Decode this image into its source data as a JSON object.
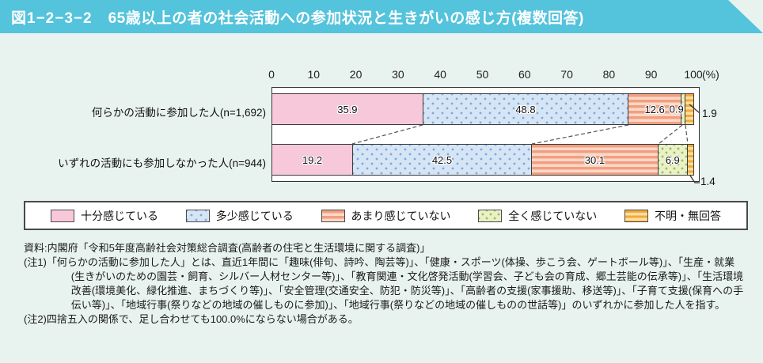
{
  "header": {
    "fig_no": "図1−2−3−2",
    "title": "65歳以上の者の社会活動への参加状況と生きがいの感じ方(複数回答)"
  },
  "chart_data": {
    "type": "bar",
    "stacked": true,
    "orientation": "horizontal",
    "unit": "(%)",
    "axis": {
      "ticks": [
        0,
        10,
        20,
        30,
        40,
        50,
        60,
        70,
        80,
        90,
        100
      ],
      "max": 100
    },
    "legend": [
      "十分感じている",
      "多少感じている",
      "あまり感じていない",
      "全く感じていない",
      "不明・無回答"
    ],
    "colors": {
      "pink": "#f7c8da",
      "blue_base": "#d6e5f5",
      "blue_dot": "#7ea9d8",
      "salmon_stripe": "#f19f82",
      "salmon_base": "#fcd8c6",
      "green_base": "#eaf0c8",
      "green_dot": "#9cbd51",
      "orange_stripe": "#f3a93c",
      "orange_base": "#fbdf9e",
      "banner": "#54c3dc",
      "page_bg": "#e8f3f0"
    },
    "rows": [
      {
        "label": "何らかの活動に参加した人(n=1,692)",
        "n": 1692,
        "values": [
          35.9,
          48.8,
          12.6,
          0.9,
          1.9
        ]
      },
      {
        "label": "いずれの活動にも参加しなかった人(n=944)",
        "n": 944,
        "values": [
          19.2,
          42.5,
          30.1,
          6.9,
          1.4
        ]
      }
    ],
    "callouts": {
      "row1_overlay": "0.9",
      "row1_outside": "1.9",
      "row2_outside": "1.4"
    }
  },
  "notes": {
    "source": "資料:内閣府「令和5年度高齢社会対策総合調査(高齢者の住宅と生活環境に関する調査)」",
    "note1": "(注1)「何らかの活動に参加した人」とは、直近1年間に「趣味(俳句、詩吟、陶芸等)」、「健康・スポーツ(体操、歩こう会、ゲートボール等)」、「生産・就業(生きがいのための園芸・飼育、シルバー人材センター等)」、「教育関連・文化啓発活動(学習会、子ども会の育成、郷土芸能の伝承等)」、「生活環境改善(環境美化、緑化推進、まちづくり等)」、「安全管理(交通安全、防犯・防災等)」、「高齢者の支援(家事援助、移送等)」、「子育て支援(保育への手伝い等)」、「地域行事(祭りなどの地域の催しものに参加)」、「地域行事(祭りなどの地域の催しものの世話等)」のいずれかに参加した人を指す。",
    "note2": "(注2)四捨五入の関係で、足し合わせても100.0%にならない場合がある。"
  }
}
